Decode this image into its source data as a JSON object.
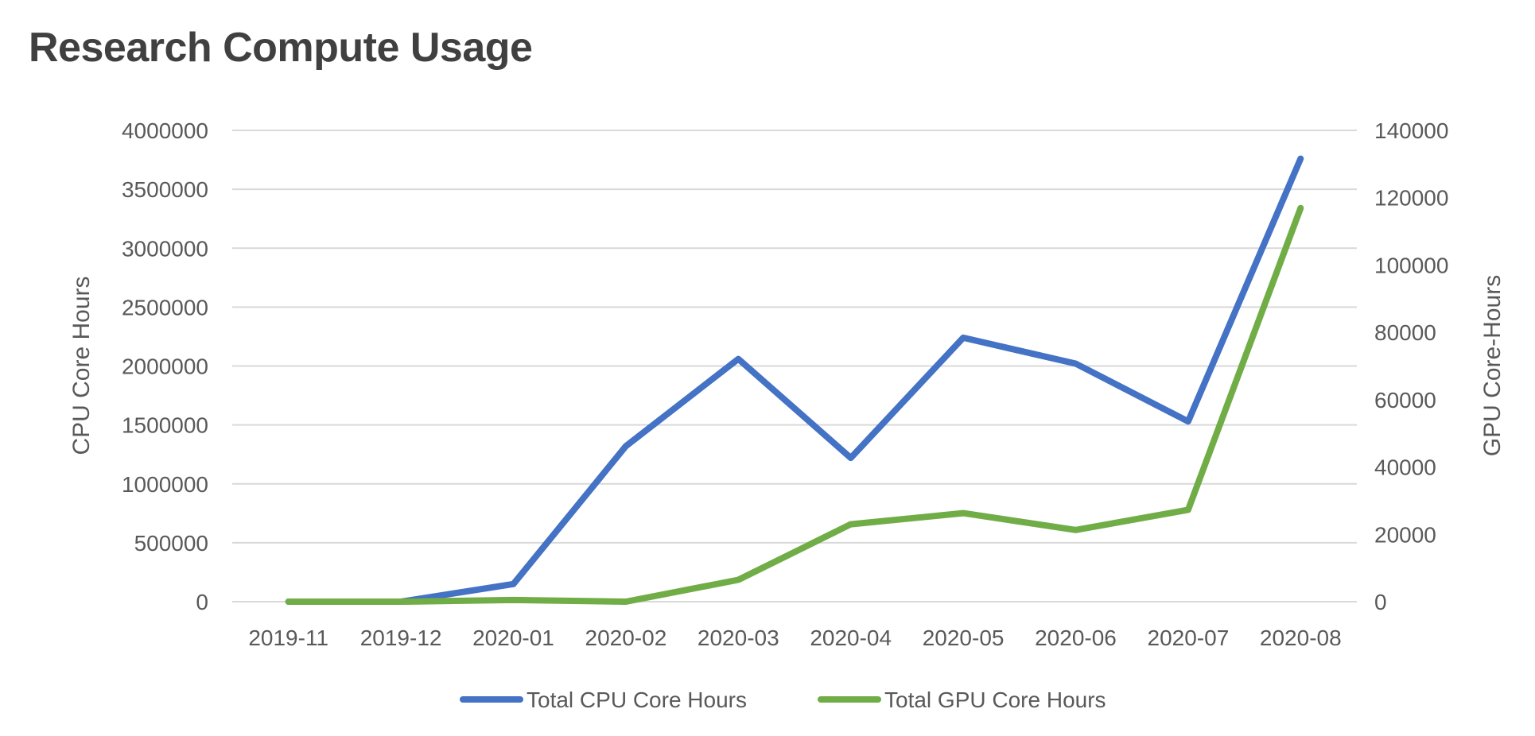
{
  "chart_data": {
    "type": "line",
    "title": "Research Compute Usage",
    "xlabel": "",
    "ylabel": "CPU Core Hours",
    "y2label": "GPU Core-Hours",
    "categories": [
      "2019-11",
      "2019-12",
      "2020-01",
      "2020-02",
      "2020-03",
      "2020-04",
      "2020-05",
      "2020-06",
      "2020-07",
      "2020-08"
    ],
    "ylim": [
      0,
      4000000
    ],
    "y2lim": [
      0,
      140000
    ],
    "yticks": [
      "0",
      "500000",
      "1000000",
      "1500000",
      "2000000",
      "2500000",
      "3000000",
      "3500000",
      "4000000"
    ],
    "y2ticks": [
      "0",
      "20000",
      "40000",
      "60000",
      "80000",
      "100000",
      "120000",
      "140000"
    ],
    "grid": true,
    "legend_position": "bottom",
    "series": [
      {
        "name": "Total CPU Core Hours",
        "axis": "left",
        "color": "#4472C4",
        "values": [
          0,
          0,
          150000,
          1320000,
          2060000,
          1220000,
          2240000,
          2020000,
          1530000,
          3760000
        ]
      },
      {
        "name": "Total GPU Core Hours",
        "axis": "right",
        "color": "#70AD47",
        "values": [
          0,
          0,
          500,
          0,
          6500,
          23000,
          26300,
          21300,
          27300,
          116900
        ]
      }
    ]
  }
}
